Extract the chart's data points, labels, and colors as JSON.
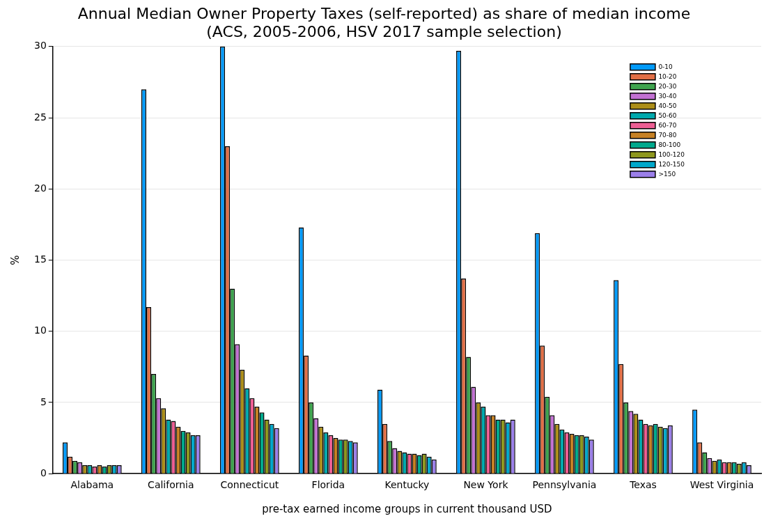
{
  "chart_data": {
    "type": "bar",
    "title": "Annual Median Owner Property Taxes (self-reported) as share of median income",
    "subtitle": "(ACS, 2005-2006, HSV 2017 sample selection)",
    "xlabel": "pre-tax earned income groups in current thousand USD",
    "ylabel": "%",
    "categories": [
      "Alabama",
      "California",
      "Connecticut",
      "Florida",
      "Kentucky",
      "New York",
      "Pennsylvania",
      "Texas",
      "West Virginia"
    ],
    "ylim": [
      0,
      30
    ],
    "yticks": [
      0,
      5,
      10,
      15,
      20,
      25,
      30
    ],
    "grid": "y",
    "legend": "top right",
    "series": [
      {
        "name": "0-10",
        "color": "#009af9",
        "values": [
          2.2,
          27.0,
          30,
          17.3,
          5.9,
          29.7,
          16.9,
          13.6,
          4.5
        ]
      },
      {
        "name": "10-20",
        "color": "#e26f46",
        "values": [
          1.2,
          11.7,
          23.0,
          8.3,
          3.5,
          13.7,
          9.0,
          7.7,
          2.2
        ]
      },
      {
        "name": "20-30",
        "color": "#3ea44e",
        "values": [
          0.9,
          7.0,
          13.0,
          5.0,
          2.3,
          8.2,
          5.4,
          5.0,
          1.5
        ]
      },
      {
        "name": "30-40",
        "color": "#c271d2",
        "values": [
          0.8,
          5.3,
          9.1,
          3.9,
          1.8,
          6.1,
          4.1,
          4.4,
          1.1
        ]
      },
      {
        "name": "40-50",
        "color": "#ac8e18",
        "values": [
          0.6,
          4.6,
          7.3,
          3.3,
          1.6,
          5.0,
          3.5,
          4.2,
          0.9
        ]
      },
      {
        "name": "50-60",
        "color": "#00a9ad",
        "values": [
          0.6,
          3.8,
          6.0,
          2.9,
          1.5,
          4.7,
          3.1,
          3.8,
          1.0
        ]
      },
      {
        "name": "60-70",
        "color": "#ed5e93",
        "values": [
          0.5,
          3.7,
          5.3,
          2.7,
          1.4,
          4.1,
          2.9,
          3.5,
          0.8
        ]
      },
      {
        "name": "70-80",
        "color": "#c68125",
        "values": [
          0.6,
          3.3,
          4.7,
          2.5,
          1.4,
          4.1,
          2.8,
          3.4,
          0.8
        ]
      },
      {
        "name": "80-100",
        "color": "#00a98d",
        "values": [
          0.5,
          3.0,
          4.3,
          2.4,
          1.3,
          3.8,
          2.7,
          3.5,
          0.8
        ]
      },
      {
        "name": "100-120",
        "color": "#8e971e",
        "values": [
          0.6,
          2.9,
          3.8,
          2.4,
          1.4,
          3.8,
          2.7,
          3.3,
          0.7
        ]
      },
      {
        "name": "120-150",
        "color": "#00a8cb",
        "values": [
          0.6,
          2.7,
          3.5,
          2.3,
          1.2,
          3.6,
          2.6,
          3.2,
          0.8
        ]
      },
      {
        "name": ">150",
        "color": "#9b7fe9",
        "values": [
          0.6,
          2.7,
          3.2,
          2.2,
          1.0,
          3.8,
          2.4,
          3.4,
          0.6
        ]
      }
    ]
  }
}
